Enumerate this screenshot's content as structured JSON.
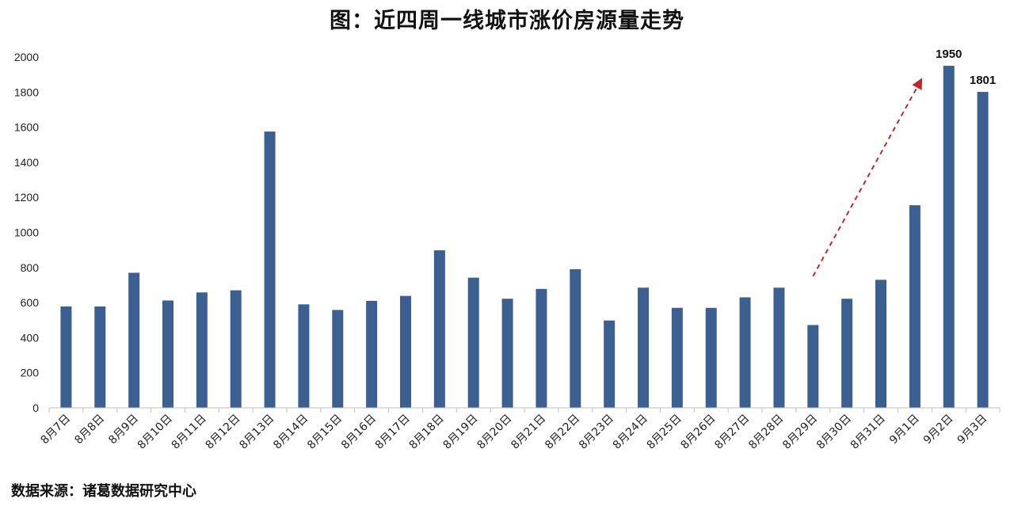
{
  "chart_data": {
    "type": "bar",
    "title": "图：近四周一线城市涨价房源量走势",
    "source": "数据来源：诸葛数据研究中心",
    "categories": [
      "8月7日",
      "8月8日",
      "8月9日",
      "8月10日",
      "8月11日",
      "8月12日",
      "8月13日",
      "8月14日",
      "8月15日",
      "8月16日",
      "8月17日",
      "8月18日",
      "8月19日",
      "8月20日",
      "8月21日",
      "8月22日",
      "8月23日",
      "8月24日",
      "8月25日",
      "8月26日",
      "8月27日",
      "8月28日",
      "8月29日",
      "8月30日",
      "8月31日",
      "9月1日",
      "9月2日",
      "9月3日"
    ],
    "values": [
      578,
      578,
      770,
      612,
      658,
      670,
      1575,
      590,
      558,
      610,
      638,
      898,
      742,
      622,
      678,
      790,
      498,
      685,
      570,
      570,
      630,
      685,
      472,
      622,
      730,
      1155,
      1950,
      1801
    ],
    "data_labels": [
      {
        "index": 26,
        "text": "1950"
      },
      {
        "index": 27,
        "text": "1801"
      }
    ],
    "ylim": [
      0,
      2000
    ],
    "yticks": [
      0,
      200,
      400,
      600,
      800,
      1000,
      1200,
      1400,
      1600,
      1800,
      2000
    ],
    "grid": false,
    "bar_color": "#3C5F91",
    "annotation": {
      "type": "dashed-arrow",
      "color": "#C0282D",
      "from_category": "8月29日",
      "from_value": 750,
      "to_category": "9月1日",
      "to_value": 1870
    }
  }
}
